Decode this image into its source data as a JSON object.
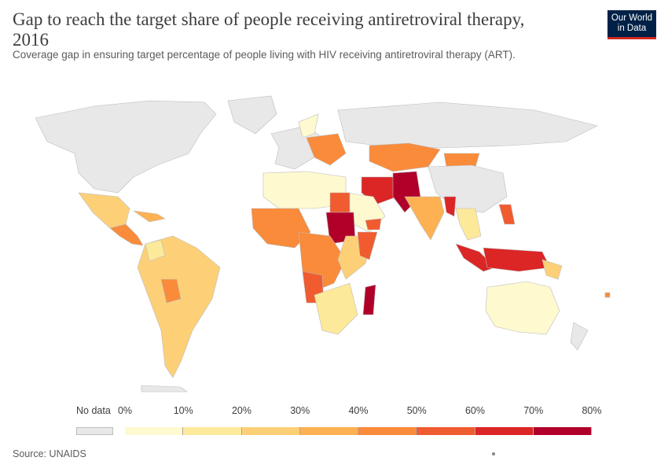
{
  "header": {
    "title": "Gap to reach the target share of people receiving antiretroviral therapy, 2016",
    "subtitle": "Coverage gap in ensuring target percentage of people living with HIV receiving antiretroviral therapy (ART).",
    "logo_line1": "Our World",
    "logo_line2": "in Data"
  },
  "legend": {
    "no_data_label": "No data",
    "no_data_color": "#e8e8e8",
    "ticks": [
      "0%",
      "10%",
      "20%",
      "30%",
      "40%",
      "50%",
      "60%",
      "70%",
      "80%"
    ],
    "bins": [
      {
        "from": 0,
        "to": 10,
        "color": "#fef9cf"
      },
      {
        "from": 10,
        "to": 20,
        "color": "#fde99a"
      },
      {
        "from": 20,
        "to": 30,
        "color": "#fdd077"
      },
      {
        "from": 30,
        "to": 40,
        "color": "#fdb153"
      },
      {
        "from": 40,
        "to": 50,
        "color": "#f98b3a"
      },
      {
        "from": 50,
        "to": 60,
        "color": "#f05b2f"
      },
      {
        "from": 60,
        "to": 70,
        "color": "#dc2525"
      },
      {
        "from": 70,
        "to": 80,
        "color": "#b0002a"
      }
    ]
  },
  "footer": {
    "source": "Source: UNAIDS"
  }
}
